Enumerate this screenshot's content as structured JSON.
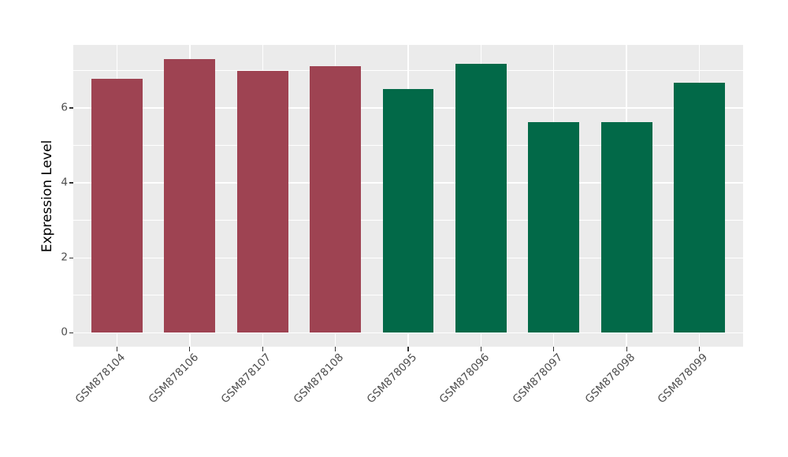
{
  "chart_data": {
    "type": "bar",
    "title": "",
    "xlabel": "",
    "ylabel": "Expression Level",
    "categories": [
      "GSM878104",
      "GSM878106",
      "GSM878107",
      "GSM878108",
      "GSM878095",
      "GSM878096",
      "GSM878097",
      "GSM878098",
      "GSM878099"
    ],
    "values": [
      6.78,
      7.31,
      6.99,
      7.11,
      6.5,
      7.17,
      5.61,
      5.63,
      6.67
    ],
    "bar_colors": [
      "#9E4352",
      "#9E4352",
      "#9E4352",
      "#9E4352",
      "#026948",
      "#026948",
      "#026948",
      "#026948",
      "#026948"
    ],
    "yticks": [
      0,
      2,
      4,
      6
    ],
    "minor_yticks": [
      1,
      3,
      5,
      7
    ],
    "ylim": [
      -0.37,
      7.68
    ],
    "grid": true,
    "legend": false,
    "styles": {
      "figure_background": "#FFFFFF",
      "panel_background": "#EBEBEB",
      "grid_color": "#FFFFFF",
      "maroon_group_color": "#9E4352",
      "green_group_color": "#026948",
      "tick_mark_color": "#333333",
      "tick_label_color": "#4D4D4D",
      "axis_title_color": "#000000"
    }
  }
}
